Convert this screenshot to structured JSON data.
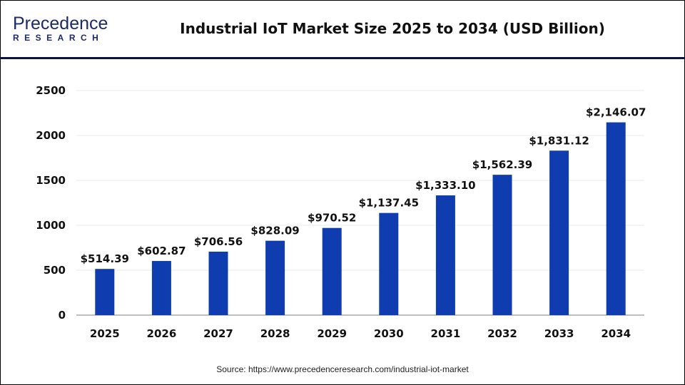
{
  "logo": {
    "line1": "Precedence",
    "line2": "RESEARCH"
  },
  "title": "Industrial IoT Market Size 2025 to 2034 (USD Billion)",
  "source": "Source: https://www.precedenceresearch.com/industrial-iot-market",
  "colors": {
    "bar": "#0f3cae",
    "header_line": "#0d1340",
    "grid": "#e8e8e8",
    "axis": "#bfbfbf"
  },
  "chart_data": {
    "type": "bar",
    "title": "Industrial IoT Market Size 2025 to 2034 (USD Billion)",
    "categories": [
      "2025",
      "2026",
      "2027",
      "2028",
      "2029",
      "2030",
      "2031",
      "2032",
      "2033",
      "2034"
    ],
    "values": [
      514.39,
      602.87,
      706.56,
      828.09,
      970.52,
      1137.45,
      1333.1,
      1562.39,
      1831.12,
      2146.07
    ],
    "data_labels": [
      "$514.39",
      "$602.87",
      "$706.56",
      "$828.09",
      "$970.52",
      "$1,137.45",
      "$1,333.10",
      "$1,562.39",
      "$1,831.12",
      "$2,146.07"
    ],
    "yticks": [
      "0",
      "500",
      "1000",
      "1500",
      "2000",
      "2500"
    ],
    "ylim": [
      0,
      2500
    ],
    "grid": true,
    "xlabel": "",
    "ylabel": ""
  }
}
